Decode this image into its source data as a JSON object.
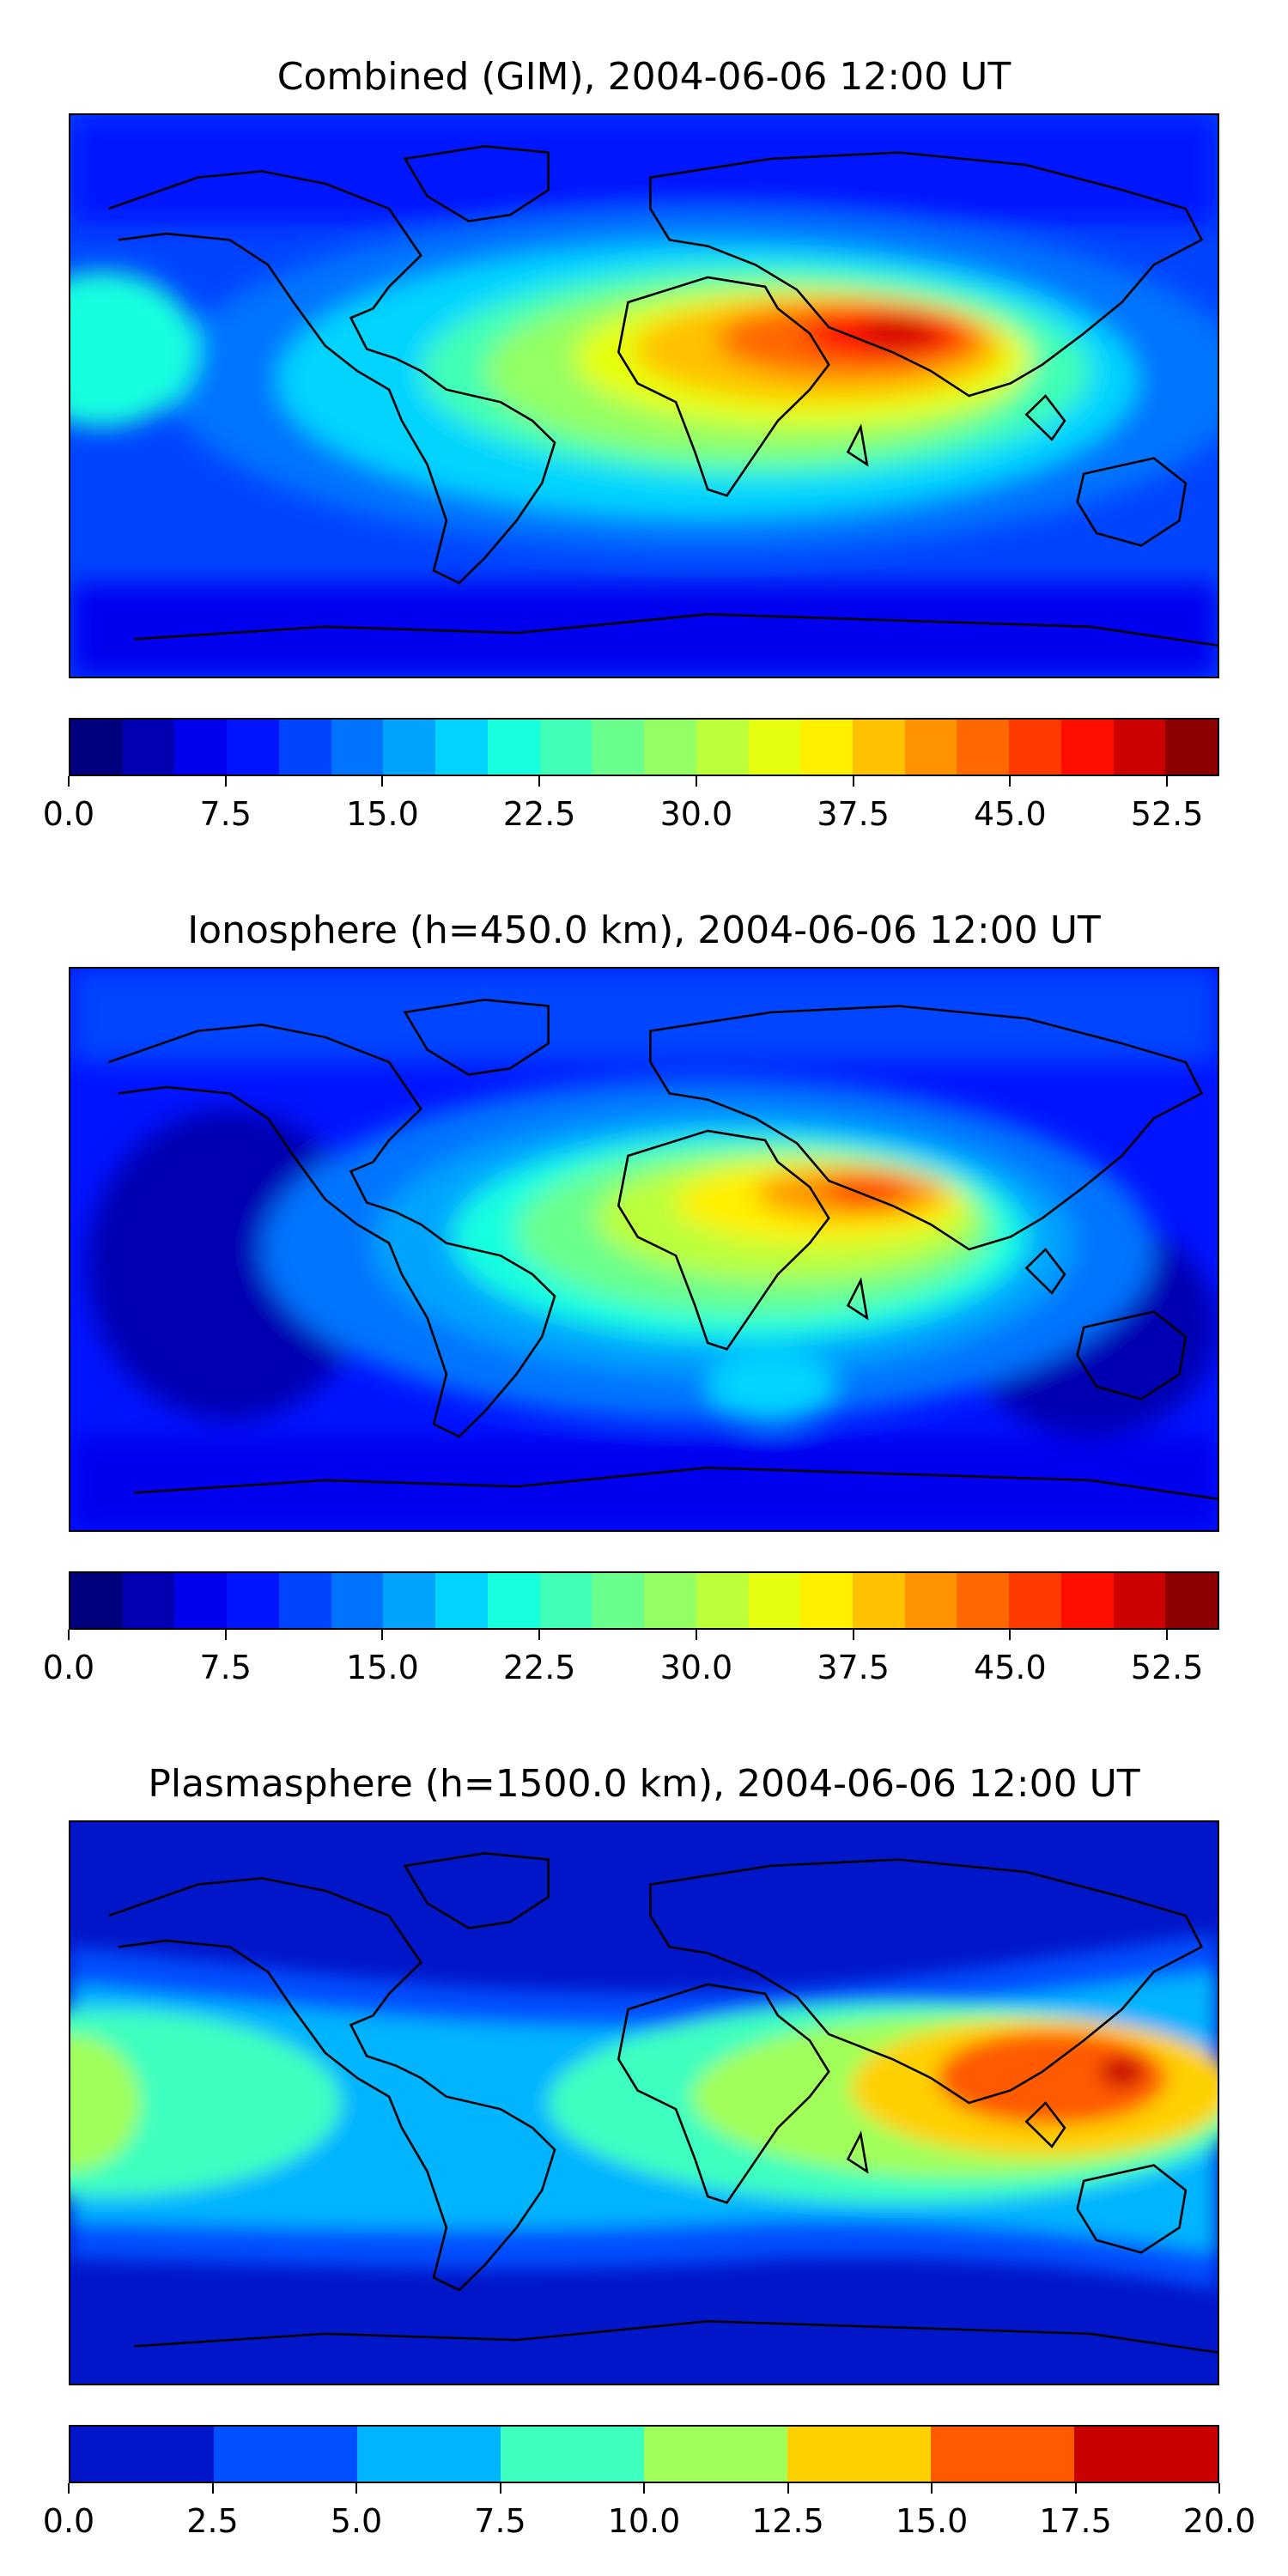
{
  "panels": [
    {
      "title": "Combined (GIM), 2004-06-06 12:00 UT",
      "colorbar": {
        "colors": [
          "#00007f",
          "#0000b2",
          "#0000ee",
          "#0014ff",
          "#0044ff",
          "#0074ff",
          "#00a4ff",
          "#00d4ff",
          "#17ffdf",
          "#40ffb6",
          "#6aff8d",
          "#93ff63",
          "#bcff3a",
          "#e6ff10",
          "#fff000",
          "#ffc100",
          "#ff9400",
          "#ff6800",
          "#ff3a00",
          "#ff0e00",
          "#cc0000",
          "#8c0000"
        ],
        "tick_labels": [
          "0.0",
          "7.5",
          "15.0",
          "22.5",
          "30.0",
          "37.5",
          "45.0",
          "52.5"
        ],
        "tick_values": [
          0,
          7.5,
          15,
          22.5,
          30,
          37.5,
          45,
          52.5
        ],
        "range": [
          0,
          55
        ]
      }
    },
    {
      "title": "Ionosphere  (h=450.0 km), 2004-06-06 12:00 UT",
      "colorbar": {
        "colors": [
          "#00007f",
          "#0000b2",
          "#0000ee",
          "#0014ff",
          "#0044ff",
          "#0074ff",
          "#00a4ff",
          "#00d4ff",
          "#17ffdf",
          "#40ffb6",
          "#6aff8d",
          "#93ff63",
          "#bcff3a",
          "#e6ff10",
          "#fff000",
          "#ffc100",
          "#ff9400",
          "#ff6800",
          "#ff3a00",
          "#ff0e00",
          "#cc0000",
          "#8c0000"
        ],
        "tick_labels": [
          "0.0",
          "7.5",
          "15.0",
          "22.5",
          "30.0",
          "37.5",
          "45.0",
          "52.5"
        ],
        "tick_values": [
          0,
          7.5,
          15,
          22.5,
          30,
          37.5,
          45,
          52.5
        ],
        "range": [
          0,
          55
        ]
      }
    },
    {
      "title": "Plasmasphere (h=1500.0 km), 2004-06-06 12:00 UT",
      "colorbar": {
        "colors": [
          "#0016c8",
          "#0050ff",
          "#00b4ff",
          "#3cffc0",
          "#a0ff5a",
          "#ffd000",
          "#ff5a00",
          "#c80000"
        ],
        "tick_labels": [
          "0.0",
          "2.5",
          "5.0",
          "7.5",
          "10.0",
          "12.5",
          "15.0",
          "17.5",
          "20.0"
        ],
        "tick_values": [
          0,
          2.5,
          5,
          7.5,
          10,
          12.5,
          15,
          17.5,
          20
        ],
        "range": [
          0,
          20
        ]
      }
    }
  ]
}
